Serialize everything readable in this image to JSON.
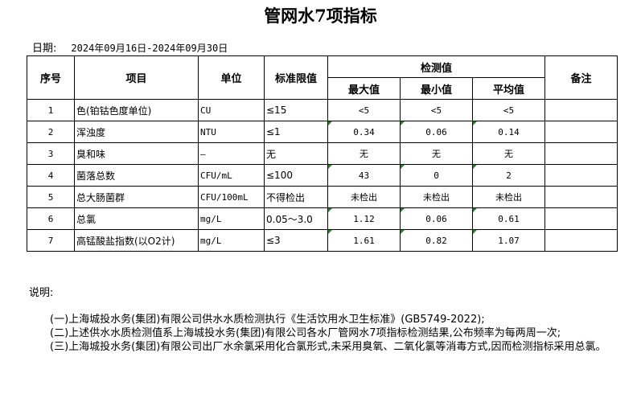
{
  "title": "管网水7项指标",
  "date_label": "日期:",
  "date_range": "2024年09月16日-2024年09月30日",
  "table": {
    "headers": {
      "seq": "序号",
      "item": "项目",
      "unit": "单位",
      "limit": "标准限值",
      "measured": "检测值",
      "max": "最大值",
      "min": "最小值",
      "avg": "平均值",
      "remark": "备注"
    },
    "rows": [
      {
        "seq": "1",
        "item": "色(铂钴色度单位)",
        "unit": "CU",
        "limit": "≤15",
        "max": "<5",
        "min": "<5",
        "avg": "<5",
        "remark": ""
      },
      {
        "seq": "2",
        "item": "浑浊度",
        "unit": "NTU",
        "limit": "≤1",
        "max": "0.34",
        "min": "0.06",
        "avg": "0.14",
        "remark": ""
      },
      {
        "seq": "3",
        "item": "臭和味",
        "unit": "—",
        "limit": "无",
        "max": "无",
        "min": "无",
        "avg": "无",
        "remark": ""
      },
      {
        "seq": "4",
        "item": "菌落总数",
        "unit": "CFU/mL",
        "limit": "≤100",
        "max": "43",
        "min": "0",
        "avg": "2",
        "remark": ""
      },
      {
        "seq": "5",
        "item": "总大肠菌群",
        "unit": "CFU/100mL",
        "limit": "不得检出",
        "max": "未检出",
        "min": "未检出",
        "avg": "未检出",
        "remark": ""
      },
      {
        "seq": "6",
        "item": "总氯",
        "unit": "mg/L",
        "limit": "0.05～3.0",
        "max": "1.12",
        "min": "0.06",
        "avg": "0.61",
        "remark": ""
      },
      {
        "seq": "7",
        "item": "高锰酸盐指数(以O2计)",
        "unit": "mg/L",
        "limit": "≤3",
        "max": "1.61",
        "min": "0.82",
        "avg": "1.07",
        "remark": ""
      }
    ]
  },
  "notes": {
    "heading": "说明:",
    "items": [
      "(一)上海城投水务(集团)有限公司供水水质检测执行《生活饮用水卫生标准》(GB5749-2022);",
      "(二)上述供水水质检测值系上海城投水务(集团)有限公司各水厂管网水7项指标检测结果,公布频率为每两周一次;",
      "(三)上海城投水务(集团)有限公司出厂水余氯采用化合氯形式,未采用臭氧、二氧化氯等消毒方式,因而检测指标采用总氯。"
    ]
  },
  "colors": {
    "error_flag": "#1e8a1e"
  }
}
